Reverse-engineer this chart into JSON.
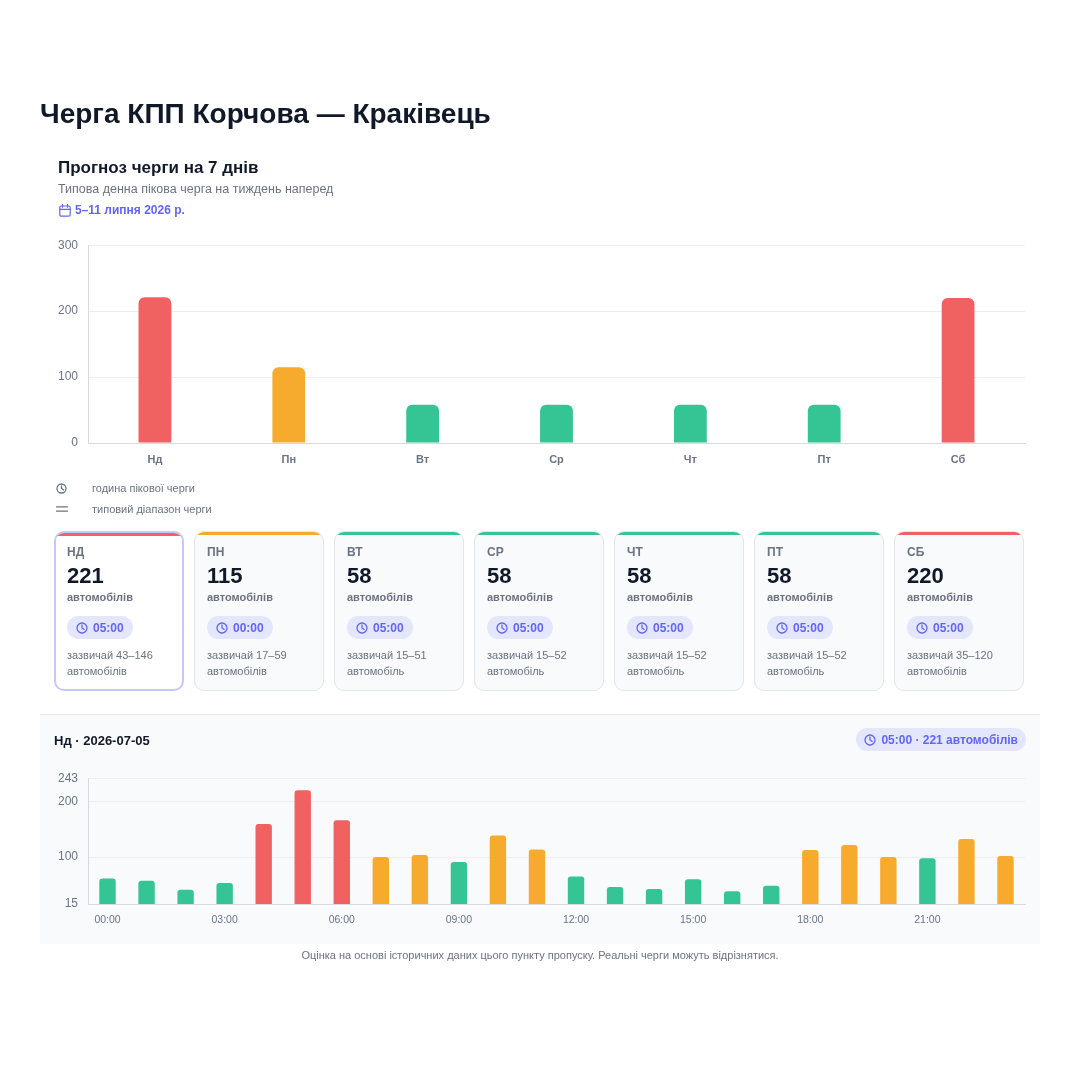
{
  "chart_data": [
    {
      "type": "bar",
      "title": "Черга КПП Корчова — Краківець",
      "subtitle": "Прогноз черги на 7 днів",
      "annotations": [
        "Типова денна пікова черга на тиждень наперед",
        "5–11 липня 2026 р."
      ],
      "categories": [
        "Нд",
        "Пн",
        "Вт",
        "Ср",
        "Чт",
        "Пт",
        "Сб"
      ],
      "values": [
        221,
        115,
        58,
        58,
        58,
        58,
        220
      ],
      "colors": [
        "#f06262",
        "#f6ab2f",
        "#35c493",
        "#35c493",
        "#35c493",
        "#35c493",
        "#f06262"
      ],
      "ylim": [
        0,
        300
      ],
      "yticks": [
        0,
        100,
        200,
        300
      ],
      "grid": "y"
    },
    {
      "type": "other",
      "categories": [
        "НД",
        "ПН",
        "ВТ",
        "СР",
        "ЧТ",
        "ПТ",
        "СБ"
      ],
      "values": [
        221,
        115,
        58,
        58,
        58,
        58,
        220
      ],
      "data_labels": true,
      "annotations": [
        "година пікової черги",
        "типовий діапазон черги",
        "автомобілів",
        "05:00",
        "зазвичай 43–146 автомобілів",
        "автомобілів",
        "00:00",
        "зазвичай 17–59 автомобілів",
        "автомобілів",
        "05:00",
        "зазвичай 15–51 автомобіль",
        "автомобілів",
        "05:00",
        "зазвичай 15–52 автомобіль",
        "автомобілів",
        "05:00",
        "зазвичай 15–52 автомобіль",
        "автомобілів",
        "05:00",
        "зазвичай 15–52 автомобіль",
        "автомобілів",
        "05:00",
        "зазвичай 35–120 автомобілів"
      ]
    },
    {
      "type": "bar",
      "title": "Нд · 2026-07-05",
      "annotations": [
        "05:00 · 221 автомобілів",
        "Оцінка на основі історичних даних цього пункту пропуску. Реальні черги можуть відрізнятися."
      ],
      "categories": [
        "00:00",
        null,
        null,
        "03:00",
        null,
        null,
        "06:00",
        null,
        null,
        "09:00",
        null,
        null,
        "12:00",
        null,
        null,
        "15:00",
        null,
        null,
        "18:00",
        null,
        null,
        "21:00",
        null,
        null
      ],
      "values": [
        61,
        57,
        41,
        53,
        160,
        221,
        167,
        100,
        104,
        91,
        139,
        114,
        65,
        46,
        42,
        60,
        38,
        48,
        113,
        122,
        100,
        98,
        133,
        102
      ],
      "colors": [
        "#35c493",
        "#35c493",
        "#35c493",
        "#35c493",
        "#f06262",
        "#f06262",
        "#f06262",
        "#f6ab2f",
        "#f6ab2f",
        "#35c493",
        "#f6ab2f",
        "#f6ab2f",
        "#35c493",
        "#35c493",
        "#35c493",
        "#35c493",
        "#35c493",
        "#35c493",
        "#f6ab2f",
        "#f6ab2f",
        "#f6ab2f",
        "#35c493",
        "#f6ab2f",
        "#f6ab2f"
      ],
      "ylim": [
        15,
        243
      ],
      "yticks": [
        15,
        100,
        200,
        243
      ],
      "grid": "y"
    }
  ]
}
